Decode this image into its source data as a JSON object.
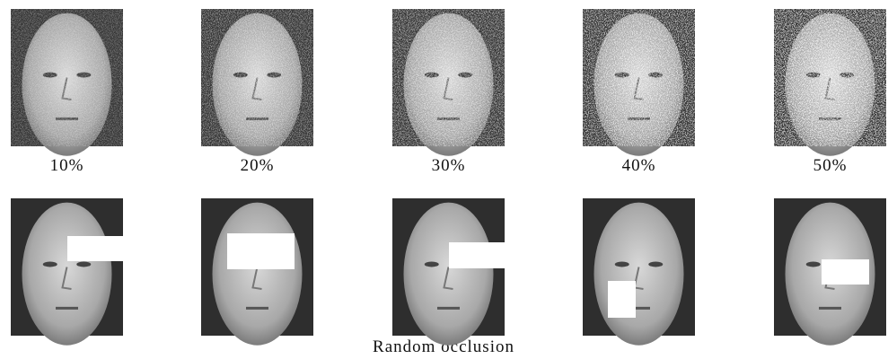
{
  "noise_row": {
    "labels": [
      "10%",
      "20%",
      "30%",
      "40%",
      "50%"
    ]
  },
  "occlusion_row": {
    "caption": "Random occlusion"
  }
}
